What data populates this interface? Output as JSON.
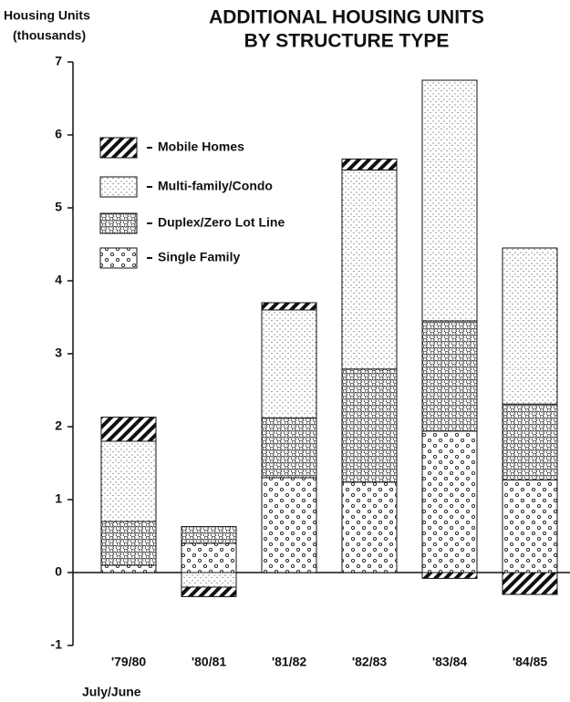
{
  "chart_data": {
    "type": "stacked_bar",
    "title": [
      "ADDITIONAL HOUSING UNITS",
      "BY STRUCTURE TYPE"
    ],
    "ylabel": [
      "Housing Units",
      "(thousands)"
    ],
    "xlabel": "July/June",
    "categories": [
      "'79/80",
      "'80/81",
      "'81/82",
      "'82/83",
      "'83/84",
      "'84/85"
    ],
    "series": [
      {
        "name": "Single Family",
        "color": "#222222",
        "values": [
          0.1,
          0.4,
          1.3,
          1.24,
          1.94,
          1.27
        ]
      },
      {
        "name": "Duplex/Zero Lot Line",
        "color": "#333333",
        "values": [
          0.6,
          0.23,
          0.82,
          1.55,
          1.51,
          1.04
        ]
      },
      {
        "name": "Multi-family/Condo",
        "color": "#555555",
        "values": [
          1.1,
          -0.2,
          1.48,
          2.73,
          3.3,
          2.14
        ]
      },
      {
        "name": "Mobile Homes",
        "color": "#111111",
        "values": [
          0.33,
          -0.13,
          0.1,
          0.15,
          -0.08,
          -0.3
        ]
      }
    ],
    "ylim": [
      -1,
      7
    ],
    "yticks": [
      -1,
      0,
      1,
      2,
      3,
      4,
      5,
      6,
      7
    ]
  }
}
